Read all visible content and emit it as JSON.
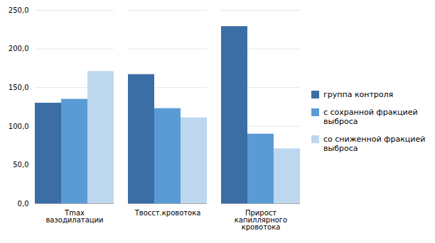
{
  "chart_data": {
    "type": "bar",
    "categories": [
      "Tmax\nвазодилатации",
      "Твосст.кровотока",
      "Прирост\nкапиллярного\nкровотока"
    ],
    "series": [
      {
        "name": "группа контроля",
        "color": "#3B6EA5",
        "values": [
          130,
          167,
          229
        ]
      },
      {
        "name": "с сохранной фракцией выброса",
        "color": "#5B9BD5",
        "values": [
          135,
          123,
          90
        ]
      },
      {
        "name": "со сниженной фракцией\nвыброса",
        "color": "#BDD7EE",
        "values": [
          171,
          111,
          71
        ]
      }
    ],
    "ylim": [
      0,
      250
    ],
    "yticks": [
      {
        "value": 0,
        "label": "0,0"
      },
      {
        "value": 50,
        "label": "50,0"
      },
      {
        "value": 100,
        "label": "100,0"
      },
      {
        "value": 150,
        "label": "150,0"
      },
      {
        "value": 200,
        "label": "200,0"
      },
      {
        "value": 250,
        "label": "250,0"
      }
    ],
    "grid": true,
    "legend": "right"
  }
}
